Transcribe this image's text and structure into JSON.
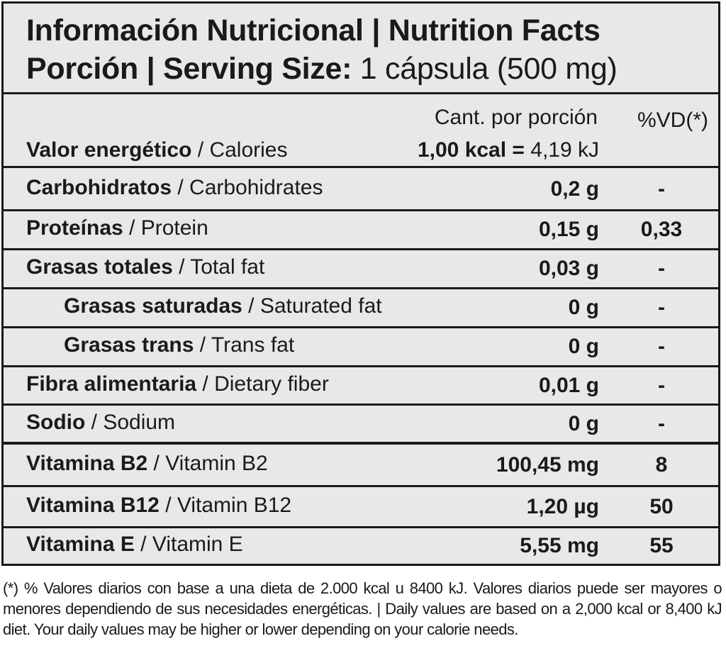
{
  "header": {
    "title": "Información Nutricional | Nutrition Facts",
    "serving_label": "Porción | Serving Size:",
    "serving_value": "1 cápsula (500 mg)"
  },
  "columns": {
    "amount": "Cant. por porción",
    "dv": "%VD(*)"
  },
  "energy": {
    "name_es": "Valor energético",
    "name_en": " / Calories",
    "amount_bold": "1,00 kcal =",
    "amount_rest": " 4,19 kJ"
  },
  "nutrients": [
    {
      "name_es": "Carbohidratos",
      "name_en": " / Carbohidrates",
      "amount": "0,2 g",
      "dv": "-"
    },
    {
      "name_es": "Proteínas",
      "name_en": " / Protein",
      "amount": "0,15 g",
      "dv": "0,33"
    },
    {
      "name_es": "Grasas totales",
      "name_en": " / Total fat",
      "amount": "0,03 g",
      "dv": "-"
    },
    {
      "name_es": "Grasas saturadas",
      "name_en": " / Saturated fat",
      "amount": "0 g",
      "dv": "-"
    },
    {
      "name_es": "Grasas trans",
      "name_en": " / Trans fat",
      "amount": "0 g",
      "dv": "-"
    },
    {
      "name_es": "Fibra alimentaria",
      "name_en": " / Dietary fiber",
      "amount": "0,01 g",
      "dv": "-"
    },
    {
      "name_es": "Sodio",
      "name_en": " / Sodium",
      "amount": "0 g",
      "dv": "-"
    },
    {
      "name_es": "Vitamina B2",
      "name_en": " / Vitamin B2",
      "amount": "100,45 mg",
      "dv": "8"
    },
    {
      "name_es": "Vitamina B12",
      "name_en": " / Vitamin B12",
      "amount": "1,20 µg",
      "dv": "50"
    },
    {
      "name_es": "Vitamina E",
      "name_en": " / Vitamin E",
      "amount": "5,55 mg",
      "dv": "55"
    }
  ],
  "footnote": "(*) % Valores diarios con base a una dieta de 2.000 kcal u 8400 kJ. Valores diarios puede ser mayores o menores dependiendo de sus necesidades energéticas. | Daily values are based on a 2,000 kcal or 8,400 kJ diet. Your daily values may be higher or lower depending on your calorie needs."
}
